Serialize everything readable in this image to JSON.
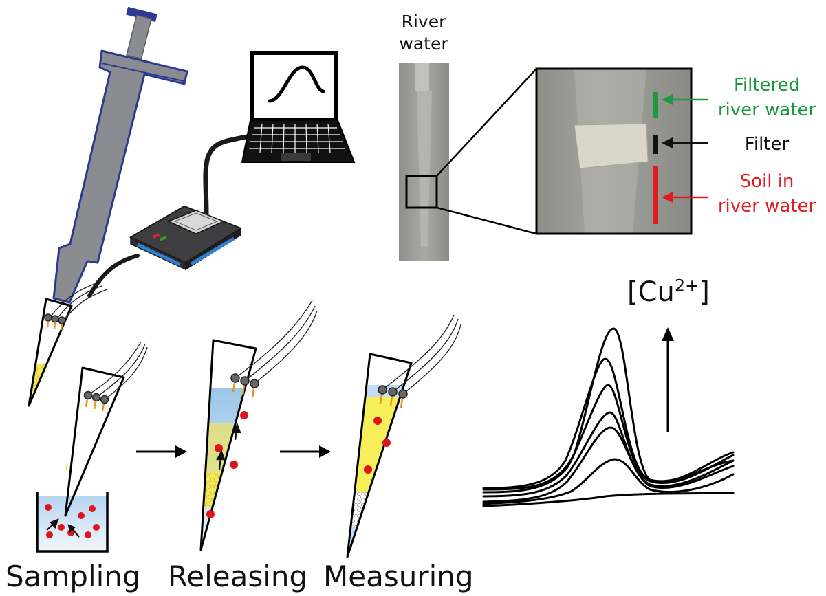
{
  "photo": {
    "title_line1": "River",
    "title_line2": "water"
  },
  "annotations": {
    "filtered_line1": "Filtered",
    "filtered_line2": "river water",
    "filter": "Filter",
    "soil_line1": "Soil in",
    "soil_line2": "river water"
  },
  "signal": {
    "species": "[Cu",
    "charge": "2+",
    "close": "]"
  },
  "steps": {
    "sampling": "Sampling",
    "releasing": "Releasing",
    "measuring": "Measuring"
  },
  "colors": {
    "filtered": "#1a9a3c",
    "soil": "#e01b24",
    "pipette_body": "#8b8c92",
    "pipette_outline": "#2b3a8f",
    "sample_yellow": "#f7ef5a",
    "solution_blue": "#c4dcf1",
    "particle_red": "#e0141e"
  }
}
